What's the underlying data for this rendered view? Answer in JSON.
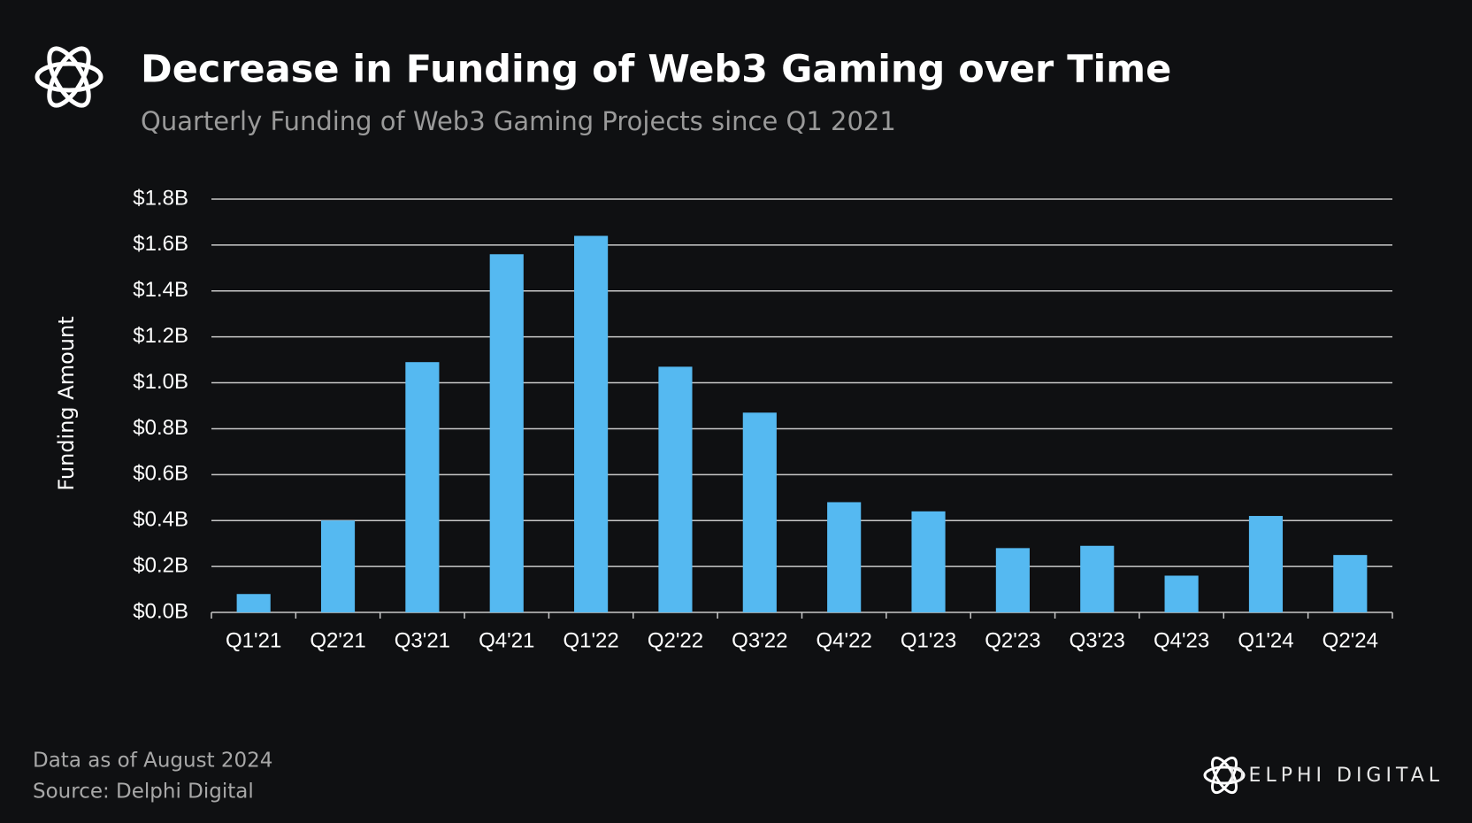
{
  "chart_data": {
    "type": "bar",
    "title": "Decrease in  Funding of Web3 Gaming over Time",
    "subtitle": "Quarterly Funding of Web3 Gaming Projects since Q1 2021",
    "y_label": "Funding Amount",
    "categories": [
      "Q1'21",
      "Q2'21",
      "Q3'21",
      "Q4'21",
      "Q1'22",
      "Q2'22",
      "Q3'22",
      "Q4'22",
      "Q1'23",
      "Q2'23",
      "Q3'23",
      "Q4'23",
      "Q1'24",
      "Q2'24"
    ],
    "values": [
      0.08,
      0.4,
      1.09,
      1.56,
      1.64,
      1.07,
      0.87,
      0.48,
      0.44,
      0.28,
      0.29,
      0.16,
      0.42,
      0.25
    ],
    "color": "#55b9f1",
    "ylim": [
      0,
      1.8
    ],
    "yticks": [
      {
        "value": 0,
        "label": "$0.0B"
      },
      {
        "value": 0.2,
        "label": "$0.2B"
      },
      {
        "value": 0.4,
        "label": "$0.4B"
      },
      {
        "value": 0.6,
        "label": "$0.6B"
      },
      {
        "value": 0.8,
        "label": "$0.8B"
      },
      {
        "value": 1.0,
        "label": "$1.0B"
      },
      {
        "value": 1.2,
        "label": "$1.2B"
      },
      {
        "value": 1.4,
        "label": "$1.4B"
      },
      {
        "value": 1.6,
        "label": "$1.6B"
      },
      {
        "value": 1.8,
        "label": "$1.8B"
      }
    ],
    "grid": true,
    "note": "Data as of August 2024",
    "source": "Source: Delphi Digital",
    "brand": "DELPHI DIGITAL"
  }
}
